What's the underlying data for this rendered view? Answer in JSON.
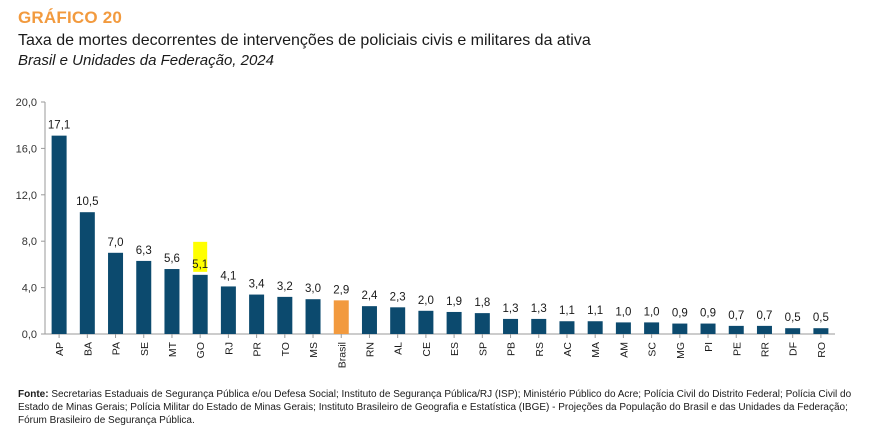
{
  "header": {
    "label": "GRÁFICO 20",
    "title": "Taxa de mortes decorrentes de intervenções de policiais civis e militares da ativa",
    "subtitle": "Brasil e Unidades da Federação, 2024"
  },
  "source": {
    "prefix": "Fonte:",
    "text": "Secretarias Estaduais de Segurança Pública e/ou Defesa Social; Instituto de Segurança Pública/RJ (ISP); Ministério Público do Acre; Polícia Civil do Distrito Federal; Polícia Civil do Estado de Minas Gerais; Polícia Militar do Estado de Minas Gerais; Instituto Brasileiro de Geografia e Estatística (IBGE) - Projeções da População do Brasil e das Unidades da Federação; Fórum Brasileiro de Segurança Pública."
  },
  "colors": {
    "bar": "#0c4a6e",
    "highlight_bar": "#f29a3e",
    "highlight_label_bg": "#ffff00",
    "axis": "#9a9a9a"
  },
  "chart_data": {
    "type": "bar",
    "categories": [
      "AP",
      "BA",
      "PA",
      "SE",
      "MT",
      "GO",
      "RJ",
      "PR",
      "TO",
      "MS",
      "Brasil",
      "RN",
      "AL",
      "CE",
      "ES",
      "SP",
      "PB",
      "RS",
      "AC",
      "MA",
      "AM",
      "SC",
      "MG",
      "PI",
      "PE",
      "RR",
      "DF",
      "RO"
    ],
    "values": [
      17.1,
      10.5,
      7.0,
      6.3,
      5.6,
      5.1,
      4.1,
      3.4,
      3.2,
      3.0,
      2.9,
      2.4,
      2.3,
      2.0,
      1.9,
      1.8,
      1.3,
      1.3,
      1.1,
      1.1,
      1.0,
      1.0,
      0.9,
      0.9,
      0.7,
      0.7,
      0.5,
      0.5
    ],
    "value_labels": [
      "17,1",
      "10,5",
      "7,0",
      "6,3",
      "5,6",
      "5,1",
      "4,1",
      "3,4",
      "3,2",
      "3,0",
      "2,9",
      "2,4",
      "2,3",
      "2,0",
      "1,9",
      "1,8",
      "1,3",
      "1,3",
      "1,1",
      "1,1",
      "1,0",
      "1,0",
      "0,9",
      "0,9",
      "0,7",
      "0,7",
      "0,5",
      "0,5"
    ],
    "highlight_category": "Brasil",
    "highlight_label_category": "GO",
    "yticks": [
      0,
      4,
      8,
      12,
      16,
      20
    ],
    "ytick_labels": [
      "0,0",
      "4,0",
      "8,0",
      "12,0",
      "16,0",
      "20,0"
    ],
    "ylim": [
      0,
      20
    ],
    "grid": false,
    "legend": "none"
  }
}
